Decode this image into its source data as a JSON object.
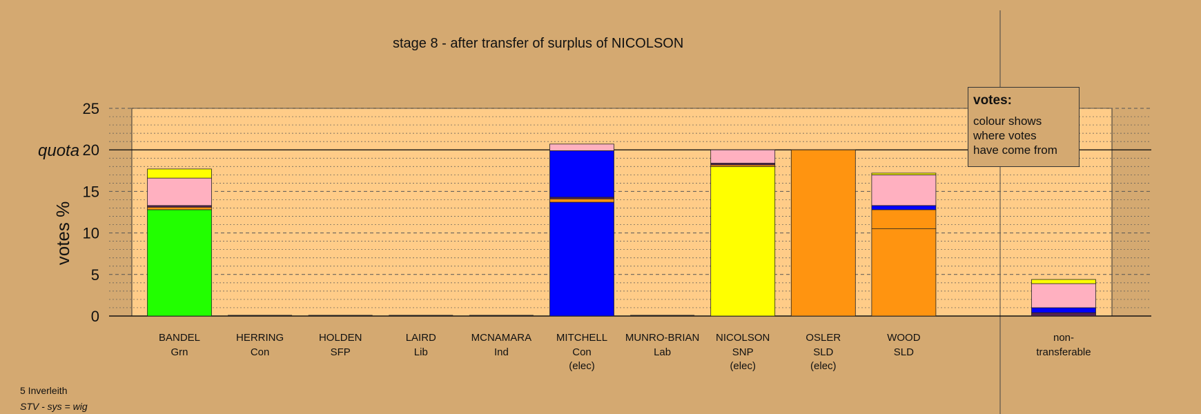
{
  "title": "stage 8 - after transfer of surplus of NICOLSON",
  "footer": {
    "constituency": "5 Inverleith",
    "system": "STV - sys = wig"
  },
  "legend": {
    "heading": "votes:",
    "body": "colour shows\nwhere votes\nhave come from"
  },
  "colors": {
    "background": "#d4a971",
    "plot_area": "#ffcc88",
    "Grn": "#22ff00",
    "Con": "#0000ff",
    "SNP": "#ffff00",
    "SLD": "#ff9410",
    "Lab": "#ffb0c0",
    "other": "#552255"
  },
  "chart_data": {
    "type": "bar",
    "stacked": true,
    "ylabel": "votes %",
    "ylim": [
      0,
      25
    ],
    "yticks": [
      0,
      5,
      10,
      15,
      20,
      25
    ],
    "quota": 20,
    "quota_label": "quota",
    "grid": true,
    "candidates": [
      {
        "name": "BANDEL",
        "party": "Grn",
        "status": "",
        "segments": [
          {
            "color": "#22ff00",
            "value": 12.8
          },
          {
            "color": "#ff9410",
            "value": 0.3
          },
          {
            "color": "#552255",
            "value": 0.2
          },
          {
            "color": "#ffb0c0",
            "value": 3.3
          },
          {
            "color": "#ffff00",
            "value": 1.1
          }
        ]
      },
      {
        "name": "HERRING",
        "party": "Con",
        "status": "",
        "segments": []
      },
      {
        "name": "HOLDEN",
        "party": "SFP",
        "status": "",
        "segments": []
      },
      {
        "name": "LAIRD",
        "party": "Lib",
        "status": "",
        "segments": []
      },
      {
        "name": "MCNAMARA",
        "party": "Ind",
        "status": "",
        "segments": []
      },
      {
        "name": "MITCHELL",
        "party": "Con",
        "status": "(elec)",
        "segments": [
          {
            "color": "#0000ff",
            "value": 13.7
          },
          {
            "color": "#ff9410",
            "value": 0.4
          },
          {
            "color": "#552255",
            "value": 0.2
          },
          {
            "color": "#0000ff",
            "value": 5.6
          },
          {
            "color": "#ffb0c0",
            "value": 0.8
          }
        ]
      },
      {
        "name": "MUNRO-BRIAN",
        "party": "Lab",
        "status": "",
        "segments": []
      },
      {
        "name": "NICOLSON",
        "party": "SNP",
        "status": "(elec)",
        "segments": [
          {
            "color": "#ffff00",
            "value": 18.0
          },
          {
            "color": "#ff9410",
            "value": 0.2
          },
          {
            "color": "#552255",
            "value": 0.2
          },
          {
            "color": "#ffb0c0",
            "value": 1.6
          }
        ]
      },
      {
        "name": "OSLER",
        "party": "SLD",
        "status": "(elec)",
        "segments": [
          {
            "color": "#ff9410",
            "value": 20.0
          }
        ]
      },
      {
        "name": "WOOD",
        "party": "SLD",
        "status": "",
        "segments": [
          {
            "color": "#ff9410",
            "value": 10.5
          },
          {
            "color": "#ff9410",
            "value": 2.3
          },
          {
            "color": "#0000ff",
            "value": 0.5
          },
          {
            "color": "#ffb0c0",
            "value": 3.7
          },
          {
            "color": "#ffff00",
            "value": 0.2
          }
        ]
      }
    ],
    "nontransferable": {
      "label_line1": "non-",
      "label_line2": "transferable",
      "segments": [
        {
          "color": "#552255",
          "value": 0.4
        },
        {
          "color": "#0000ff",
          "value": 0.6
        },
        {
          "color": "#ffb0c0",
          "value": 2.9
        },
        {
          "color": "#ffff00",
          "value": 0.5
        }
      ]
    }
  }
}
